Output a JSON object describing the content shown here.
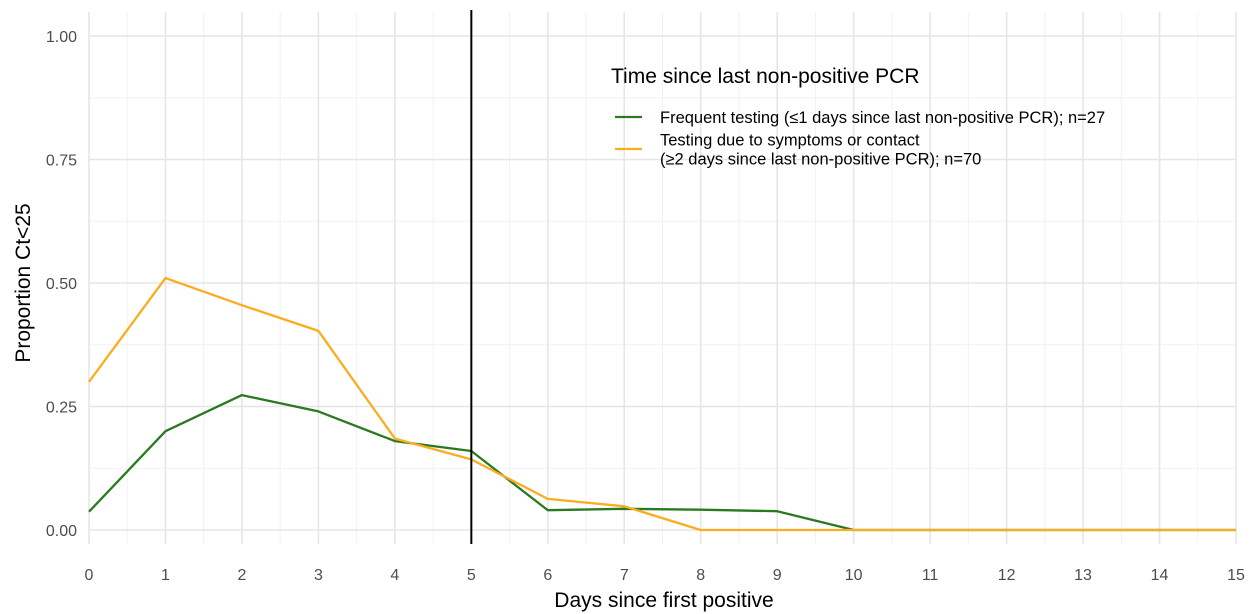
{
  "chart_data": {
    "type": "line",
    "xlabel": "Days since first positive",
    "ylabel": "Proportion Ct<25",
    "xlim": [
      0,
      15
    ],
    "ylim": [
      0,
      1
    ],
    "x_ticks": [
      "0",
      "1",
      "2",
      "3",
      "4",
      "5",
      "6",
      "7",
      "8",
      "9",
      "10",
      "11",
      "12",
      "13",
      "14",
      "15"
    ],
    "y_ticks": [
      "0.00",
      "0.25",
      "0.50",
      "0.75",
      "1.00"
    ],
    "grid": true,
    "reference_line": {
      "x": 5,
      "color": "#000000"
    },
    "legend": {
      "title": "Time since last non-positive PCR",
      "position": "top-right"
    },
    "series": [
      {
        "name": "Frequent testing (≤1 days since last non-positive PCR); n=27",
        "label_lines": [
          "Frequent testing (≤1 days since last non-positive PCR); n=27"
        ],
        "color": "#2a7a1f",
        "x": [
          0,
          1,
          2,
          3,
          4,
          5,
          6,
          7,
          8,
          9,
          10,
          11,
          12,
          13,
          14,
          15
        ],
        "y": [
          0.037,
          0.2,
          0.273,
          0.24,
          0.18,
          0.16,
          0.04,
          0.043,
          0.041,
          0.038,
          0.0,
          0.0,
          0.0,
          0.0,
          0.0,
          0.0
        ]
      },
      {
        "name": "Testing due to symptoms or contact (≥2 days since last non-positive PCR); n=70",
        "label_lines": [
          "Testing due to symptoms or contact",
          "(≥2 days since last non-positive PCR); n=70"
        ],
        "color": "#fbad1f",
        "x": [
          0,
          1,
          2,
          3,
          4,
          5,
          6,
          7,
          8,
          9,
          10,
          11,
          12,
          13,
          14,
          15
        ],
        "y": [
          0.3,
          0.51,
          0.455,
          0.403,
          0.185,
          0.143,
          0.063,
          0.048,
          0.0,
          0.0,
          0.0,
          0.0,
          0.0,
          0.0,
          0.0,
          0.0
        ]
      }
    ]
  }
}
